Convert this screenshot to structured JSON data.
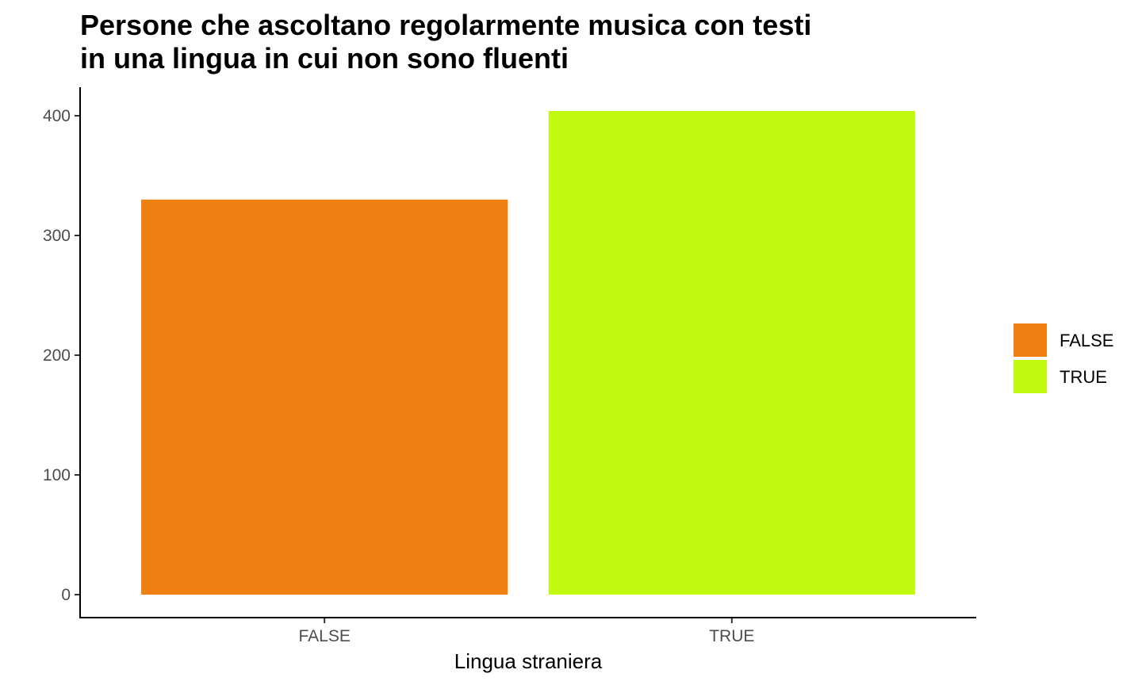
{
  "chart_data": {
    "type": "bar",
    "title_lines": [
      "Persone che ascoltano regolarmente musica con testi",
      "in una lingua in cui non sono fluenti"
    ],
    "xlabel": "Lingua straniera",
    "ylabel": "",
    "categories": [
      "FALSE",
      "TRUE"
    ],
    "values": [
      330,
      404
    ],
    "ylim": [
      0,
      420
    ],
    "yticks": [
      0,
      100,
      200,
      300,
      400
    ],
    "grid": false,
    "legend": {
      "placement": "right",
      "entries": [
        {
          "label": "FALSE",
          "color": "#F07F12"
        },
        {
          "label": "TRUE",
          "color": "#C2F910"
        }
      ]
    },
    "colors": [
      "#F07F12",
      "#C2F910"
    ]
  }
}
